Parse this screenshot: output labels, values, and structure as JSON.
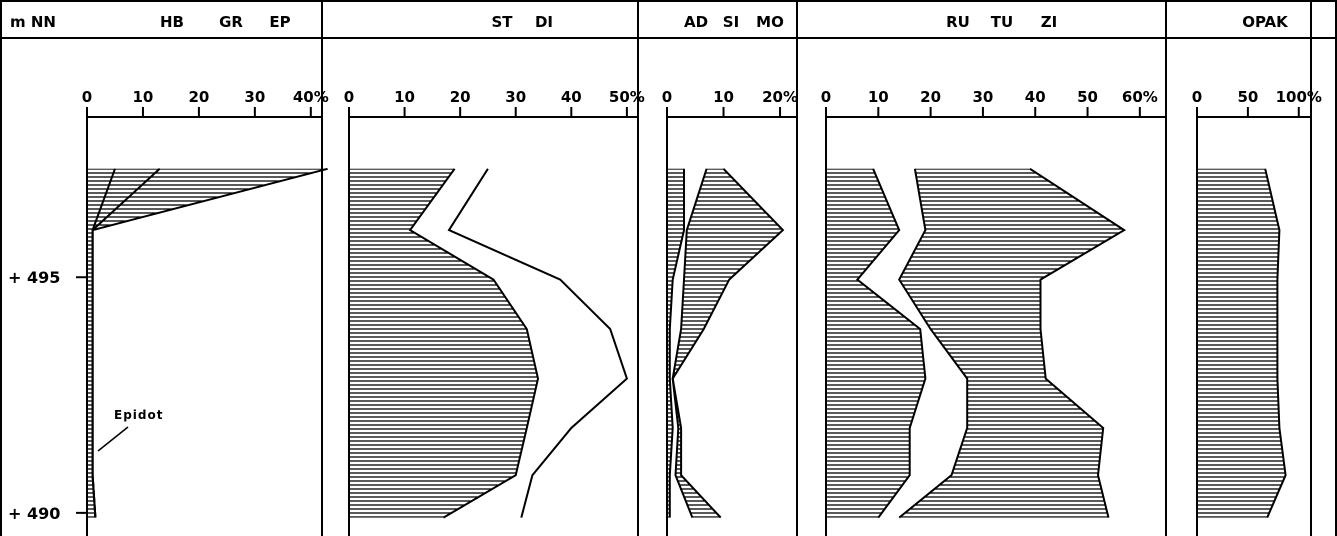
{
  "chart_data": {
    "type": "area",
    "y_axis": {
      "title": "m NN",
      "ticks": [
        {
          "value": 495,
          "label": "+ 495"
        },
        {
          "value": 490,
          "label": "+ 490"
        }
      ],
      "range": [
        489,
        498.4
      ]
    },
    "depth": [
      497.3,
      496.0,
      494.95,
      493.9,
      492.85,
      491.8,
      490.8,
      489.9
    ],
    "panels": [
      {
        "labels": [
          "HB",
          "GR",
          "EP"
        ],
        "ticks": [
          "0",
          "10",
          "20",
          "30",
          "40%"
        ],
        "xlim": [
          0,
          42
        ],
        "fill": "cum1",
        "series": [
          {
            "name": "HB",
            "values": [
              5,
              1,
              1,
              1,
              1,
              1,
              1,
              1.5
            ]
          },
          {
            "name": "GR",
            "values": [
              8,
              0,
              0,
              0,
              0,
              0,
              0,
              0
            ]
          },
          {
            "name": "EP",
            "values": [
              30,
              0,
              0,
              0,
              0,
              0,
              0,
              0
            ]
          }
        ],
        "annotation": "Epidot"
      },
      {
        "labels": [
          "ST",
          "DI"
        ],
        "ticks": [
          "0",
          "10",
          "20",
          "30",
          "40",
          "50%"
        ],
        "xlim": [
          0,
          52
        ],
        "fill": "first",
        "series": [
          {
            "name": "ST",
            "values": [
              19,
              11,
              26,
              32,
              34,
              32,
              30,
              17
            ]
          },
          {
            "name": "DI",
            "values": [
              6,
              7,
              12,
              15,
              16,
              8,
              3,
              14
            ]
          }
        ]
      },
      {
        "labels": [
          "AD",
          "SI",
          "MO"
        ],
        "ticks": [
          "0",
          "10",
          "20%"
        ],
        "xlim": [
          0,
          23
        ],
        "fill": "third",
        "series": [
          {
            "name": "AD",
            "values": [
              3,
              3,
              1,
              0.5,
              0.5,
              1,
              0.5,
              0.5
            ]
          },
          {
            "name": "SI",
            "values": [
              4,
              0.5,
              2,
              2,
              0.5,
              1,
              1,
              4
            ]
          },
          {
            "name": "MO",
            "values": [
              3,
              17,
              8,
              4,
              0,
              0.5,
              1,
              5
            ]
          }
        ]
      },
      {
        "labels": [
          "RU",
          "TU",
          "ZI"
        ],
        "ticks": [
          "0",
          "10",
          "20",
          "30",
          "40",
          "50",
          "60%"
        ],
        "xlim": [
          0,
          65
        ],
        "fill": "first_third",
        "series": [
          {
            "name": "RU",
            "values": [
              9,
              14,
              6,
              18,
              19,
              16,
              16,
              10
            ]
          },
          {
            "name": "TU",
            "values": [
              8,
              5,
              8,
              2,
              8,
              11,
              8,
              4
            ]
          },
          {
            "name": "ZI",
            "values": [
              22,
              38,
              27,
              21,
              15,
              26,
              28,
              40
            ]
          }
        ]
      },
      {
        "labels": [
          "OPAK"
        ],
        "ticks": [
          "0",
          "50",
          "100%"
        ],
        "xlim": [
          0,
          112
        ],
        "fill": "first",
        "series": [
          {
            "name": "OPAK",
            "values": [
              67,
              81,
              79,
              79,
              79,
              81,
              87,
              69
            ]
          }
        ]
      }
    ]
  }
}
